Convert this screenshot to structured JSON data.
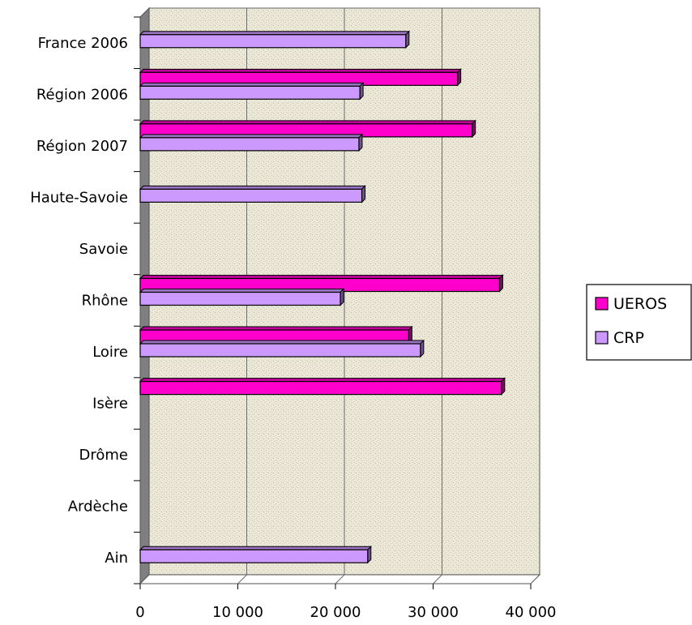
{
  "chart_data": {
    "type": "bar",
    "orientation": "horizontal",
    "three_d": true,
    "categories": [
      "Ain",
      "Ardèche",
      "Drôme",
      "Isère",
      "Loire",
      "Rhône",
      "Savoie",
      "Haute-Savoie",
      "Région 2007",
      "Région 2006",
      "France 2006"
    ],
    "series": [
      {
        "name": "UEROS",
        "color": "#ff00cc",
        "values": [
          null,
          null,
          null,
          37000,
          27500,
          36800,
          null,
          null,
          34000,
          32500,
          null
        ]
      },
      {
        "name": "CRP",
        "color": "#cc99ff",
        "values": [
          23300,
          null,
          null,
          null,
          28700,
          20500,
          null,
          22700,
          22400,
          22500,
          27200
        ]
      }
    ],
    "x_ticks": [
      "0",
      "10 000",
      "20 000",
      "30 000",
      "40 000"
    ],
    "xlim": [
      0,
      40000
    ],
    "grid": true,
    "legend_position": "right",
    "title": "",
    "xlabel": "",
    "ylabel": ""
  }
}
